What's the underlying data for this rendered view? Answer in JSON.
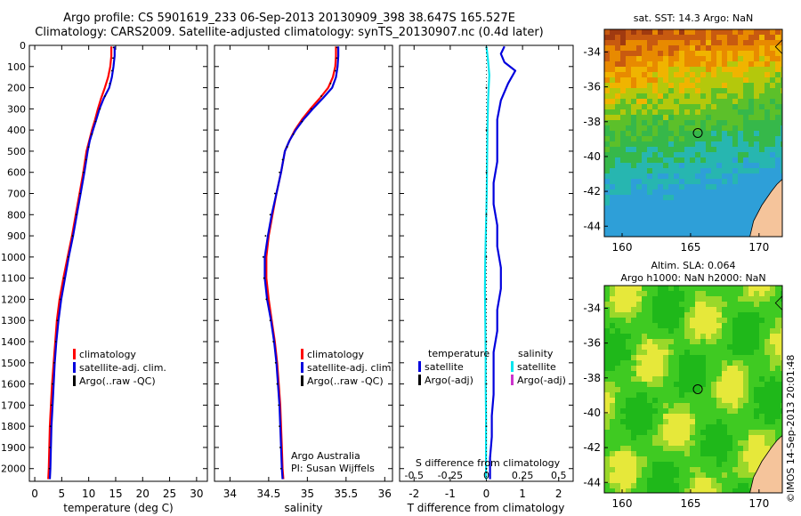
{
  "title_line1": "Argo profile: CS 5901619_233 06-Sep-2013 20130909_398 38.647S 165.527E",
  "title_line2": "Climatology: CARS2009. Satellite-adjusted climatology: synTS_20130907.nc (0.4d later)",
  "side_stamp": "©IMOS 14-Sep-2013 20:01:48",
  "colors": {
    "climatology": "#ff0000",
    "satellite": "#0000dd",
    "argo": "#000000",
    "salinity_sat": "#00e5ee",
    "salinity_argo": "#cc33cc",
    "land": "#f5c49b"
  },
  "depth_axis": {
    "ylim": [
      2060,
      0
    ],
    "ticks": [
      0,
      100,
      200,
      300,
      400,
      500,
      600,
      700,
      800,
      900,
      1000,
      1100,
      1200,
      1300,
      1400,
      1500,
      1600,
      1700,
      1800,
      1900,
      2000
    ]
  },
  "chart_data": [
    {
      "type": "line",
      "id": "temperature",
      "xlabel": "temperature (deg C)",
      "xlim": [
        -1,
        32
      ],
      "xticks": [
        0,
        5,
        10,
        15,
        20,
        25,
        30
      ],
      "ylim": [
        2060,
        0
      ],
      "legend": [
        "climatology",
        "satellite-adj. clim.",
        "Argo(..raw -QC)"
      ],
      "series": [
        {
          "name": "climatology",
          "style": "line",
          "color": "#ff0000",
          "points": [
            [
              14.2,
              5
            ],
            [
              14.2,
              50
            ],
            [
              14.0,
              100
            ],
            [
              13.6,
              150
            ],
            [
              13.0,
              200
            ],
            [
              12.3,
              250
            ],
            [
              11.7,
              300
            ],
            [
              11.2,
              350
            ],
            [
              10.6,
              400
            ],
            [
              10.1,
              450
            ],
            [
              9.6,
              500
            ],
            [
              9.0,
              600
            ],
            [
              8.3,
              700
            ],
            [
              7.6,
              800
            ],
            [
              6.9,
              900
            ],
            [
              6.1,
              1000
            ],
            [
              5.3,
              1100
            ],
            [
              4.6,
              1200
            ],
            [
              4.1,
              1300
            ],
            [
              3.8,
              1400
            ],
            [
              3.5,
              1500
            ],
            [
              3.2,
              1600
            ],
            [
              3.0,
              1700
            ],
            [
              2.8,
              1800
            ],
            [
              2.7,
              1900
            ],
            [
              2.6,
              2000
            ],
            [
              2.5,
              2050
            ]
          ]
        },
        {
          "name": "satellite-adj. clim.",
          "style": "line",
          "color": "#0000dd",
          "points": [
            [
              14.8,
              5
            ],
            [
              14.8,
              50
            ],
            [
              14.6,
              100
            ],
            [
              14.3,
              150
            ],
            [
              13.8,
              200
            ],
            [
              12.8,
              250
            ],
            [
              12.0,
              300
            ],
            [
              11.4,
              350
            ],
            [
              10.8,
              400
            ],
            [
              10.2,
              450
            ],
            [
              9.8,
              500
            ],
            [
              9.2,
              600
            ],
            [
              8.5,
              700
            ],
            [
              7.8,
              800
            ],
            [
              7.1,
              900
            ],
            [
              6.3,
              1000
            ],
            [
              5.6,
              1100
            ],
            [
              4.9,
              1200
            ],
            [
              4.4,
              1300
            ],
            [
              4.0,
              1400
            ],
            [
              3.7,
              1500
            ],
            [
              3.5,
              1600
            ],
            [
              3.3,
              1700
            ],
            [
              3.1,
              1800
            ],
            [
              3.0,
              1900
            ],
            [
              2.9,
              2000
            ],
            [
              2.8,
              2050
            ]
          ]
        },
        {
          "name": "Argo(..raw -QC)",
          "style": "dots",
          "color": "#000000",
          "points": [
            [
              14.6,
              10
            ],
            [
              14.5,
              60
            ],
            [
              14.3,
              120
            ],
            [
              13.9,
              180
            ],
            [
              13.0,
              240
            ],
            [
              12.1,
              300
            ],
            [
              11.3,
              360
            ],
            [
              10.6,
              420
            ],
            [
              10.0,
              480
            ],
            [
              9.5,
              540
            ],
            [
              9.0,
              600
            ],
            [
              8.4,
              700
            ],
            [
              7.7,
              800
            ],
            [
              7.0,
              900
            ],
            [
              6.2,
              1000
            ],
            [
              5.4,
              1100
            ],
            [
              4.7,
              1200
            ],
            [
              4.2,
              1300
            ],
            [
              3.9,
              1400
            ],
            [
              3.6,
              1500
            ],
            [
              3.3,
              1600
            ],
            [
              3.1,
              1700
            ],
            [
              2.9,
              1800
            ],
            [
              2.8,
              1900
            ],
            [
              2.7,
              2000
            ]
          ]
        }
      ]
    },
    {
      "type": "line",
      "id": "salinity",
      "xlabel": "salinity",
      "xlim": [
        33.8,
        36.1
      ],
      "xticks": [
        34,
        34.5,
        35,
        35.5,
        36
      ],
      "xtick_labels": [
        "34",
        "34.5",
        "35",
        "35.5",
        "36"
      ],
      "ylim": [
        2060,
        0
      ],
      "legend": [
        "climatology",
        "satellite-adj. clim.",
        "Argo(..raw -QC)"
      ],
      "annotation": [
        "Argo Australia",
        "PI: Susan Wijffels"
      ],
      "series": [
        {
          "name": "climatology",
          "style": "line",
          "color": "#ff0000",
          "points": [
            [
              35.37,
              5
            ],
            [
              35.37,
              50
            ],
            [
              35.36,
              100
            ],
            [
              35.33,
              150
            ],
            [
              35.27,
              200
            ],
            [
              35.16,
              250
            ],
            [
              35.04,
              300
            ],
            [
              34.93,
              350
            ],
            [
              34.84,
              400
            ],
            [
              34.77,
              450
            ],
            [
              34.71,
              500
            ],
            [
              34.66,
              600
            ],
            [
              34.6,
              700
            ],
            [
              34.55,
              800
            ],
            [
              34.5,
              900
            ],
            [
              34.47,
              1000
            ],
            [
              34.47,
              1100
            ],
            [
              34.5,
              1200
            ],
            [
              34.54,
              1300
            ],
            [
              34.58,
              1400
            ],
            [
              34.61,
              1500
            ],
            [
              34.63,
              1600
            ],
            [
              34.65,
              1700
            ],
            [
              34.66,
              1800
            ],
            [
              34.67,
              1900
            ],
            [
              34.68,
              2000
            ],
            [
              34.69,
              2050
            ]
          ]
        },
        {
          "name": "satellite-adj. clim.",
          "style": "line",
          "color": "#0000dd",
          "points": [
            [
              35.4,
              5
            ],
            [
              35.4,
              50
            ],
            [
              35.39,
              100
            ],
            [
              35.37,
              150
            ],
            [
              35.32,
              200
            ],
            [
              35.2,
              250
            ],
            [
              35.07,
              300
            ],
            [
              34.95,
              350
            ],
            [
              34.85,
              400
            ],
            [
              34.77,
              450
            ],
            [
              34.71,
              500
            ],
            [
              34.66,
              600
            ],
            [
              34.6,
              700
            ],
            [
              34.54,
              800
            ],
            [
              34.49,
              900
            ],
            [
              34.45,
              1000
            ],
            [
              34.45,
              1100
            ],
            [
              34.48,
              1200
            ],
            [
              34.53,
              1300
            ],
            [
              34.57,
              1400
            ],
            [
              34.6,
              1500
            ],
            [
              34.62,
              1600
            ],
            [
              34.64,
              1700
            ],
            [
              34.65,
              1800
            ],
            [
              34.66,
              1900
            ],
            [
              34.67,
              2000
            ],
            [
              34.68,
              2050
            ]
          ]
        },
        {
          "name": "Argo(..raw -QC)",
          "style": "dots",
          "color": "#000000",
          "points": [
            [
              35.38,
              10
            ],
            [
              35.38,
              60
            ],
            [
              35.36,
              120
            ],
            [
              35.3,
              180
            ],
            [
              35.18,
              240
            ],
            [
              35.05,
              300
            ],
            [
              34.93,
              360
            ],
            [
              34.82,
              420
            ],
            [
              34.74,
              480
            ],
            [
              34.68,
              540
            ],
            [
              34.64,
              600
            ],
            [
              34.58,
              700
            ],
            [
              34.52,
              800
            ],
            [
              34.46,
              900
            ],
            [
              34.43,
              1000
            ],
            [
              34.44,
              1100
            ],
            [
              34.47,
              1200
            ],
            [
              34.52,
              1300
            ],
            [
              34.56,
              1400
            ],
            [
              34.59,
              1500
            ],
            [
              34.61,
              1600
            ],
            [
              34.63,
              1700
            ],
            [
              34.64,
              1800
            ],
            [
              34.65,
              1900
            ],
            [
              34.66,
              2000
            ]
          ]
        }
      ]
    },
    {
      "type": "line",
      "id": "difference",
      "xlabel_bottom": "T difference from climatology",
      "xlabel_top": "S difference from climatology",
      "xlim": [
        -2.4,
        2.4
      ],
      "xticks": [
        -2,
        -1,
        0,
        1,
        2
      ],
      "top_ticks": [
        -0.5,
        -0.25,
        0,
        0.25,
        0.5
      ],
      "top_tick_labels": [
        "-0.5",
        "-0.25",
        "0",
        "0.25",
        "0.5"
      ],
      "ylim": [
        2060,
        0
      ],
      "legend_temperature": [
        "temperature",
        "satellite",
        "Argo(-adj)"
      ],
      "legend_salinity": [
        "salinity",
        "satellite",
        "Argo(-adj)"
      ],
      "series": [
        {
          "name": "temperature satellite",
          "style": "line",
          "color": "#0000dd",
          "points": [
            [
              0.5,
              5
            ],
            [
              0.4,
              40
            ],
            [
              0.5,
              80
            ],
            [
              0.8,
              120
            ],
            [
              0.6,
              180
            ],
            [
              0.4,
              260
            ],
            [
              0.3,
              350
            ],
            [
              0.3,
              450
            ],
            [
              0.3,
              550
            ],
            [
              0.2,
              650
            ],
            [
              0.2,
              750
            ],
            [
              0.3,
              850
            ],
            [
              0.3,
              950
            ],
            [
              0.4,
              1050
            ],
            [
              0.4,
              1150
            ],
            [
              0.3,
              1250
            ],
            [
              0.3,
              1350
            ],
            [
              0.2,
              1450
            ],
            [
              0.2,
              1550
            ],
            [
              0.2,
              1650
            ],
            [
              0.15,
              1750
            ],
            [
              0.15,
              1850
            ],
            [
              0.1,
              1950
            ],
            [
              0.1,
              2050
            ]
          ]
        },
        {
          "name": "salinity satellite",
          "style": "line",
          "color": "#00e5ee",
          "points": [
            [
              0.0,
              5
            ],
            [
              0.04,
              60
            ],
            [
              0.08,
              140
            ],
            [
              0.05,
              250
            ],
            [
              0.03,
              400
            ],
            [
              0.02,
              550
            ],
            [
              0.01,
              700
            ],
            [
              -0.01,
              850
            ],
            [
              -0.03,
              1000
            ],
            [
              -0.04,
              1150
            ],
            [
              -0.03,
              1300
            ],
            [
              -0.02,
              1450
            ],
            [
              -0.02,
              1600
            ],
            [
              -0.01,
              1750
            ],
            [
              -0.01,
              1900
            ],
            [
              -0.01,
              2050
            ]
          ]
        },
        {
          "name": "temperature Argo(-adj)",
          "style": "dots",
          "color": "#000000",
          "points": [
            [
              0,
              10
            ],
            [
              0,
              200
            ],
            [
              0,
              400
            ],
            [
              0,
              600
            ],
            [
              0,
              800
            ],
            [
              0,
              1000
            ],
            [
              0,
              1200
            ],
            [
              0,
              1400
            ],
            [
              0,
              1600
            ],
            [
              0,
              1800
            ],
            [
              0,
              2000
            ]
          ]
        }
      ]
    },
    {
      "type": "heatmap",
      "id": "sst-map",
      "title": "sat. SST: 14.3 Argo: NaN",
      "xlim": [
        158.7,
        171.7
      ],
      "ylim": [
        -44.6,
        -32.7
      ],
      "xticks": [
        160,
        165,
        170
      ],
      "yticks": [
        -34,
        -36,
        -38,
        -40,
        -42,
        -44
      ],
      "marker": [
        165.527,
        -38.647
      ]
    },
    {
      "type": "heatmap",
      "id": "sla-map",
      "title_line1": "Altim. SLA: 0.064",
      "title_line2": "Argo h1000: NaN h2000: NaN",
      "xlim": [
        158.7,
        171.7
      ],
      "ylim": [
        -44.6,
        -32.7
      ],
      "xticks": [
        160,
        165,
        170
      ],
      "yticks": [
        -34,
        -36,
        -38,
        -40,
        -42,
        -44
      ],
      "marker": [
        165.527,
        -38.647
      ]
    }
  ]
}
